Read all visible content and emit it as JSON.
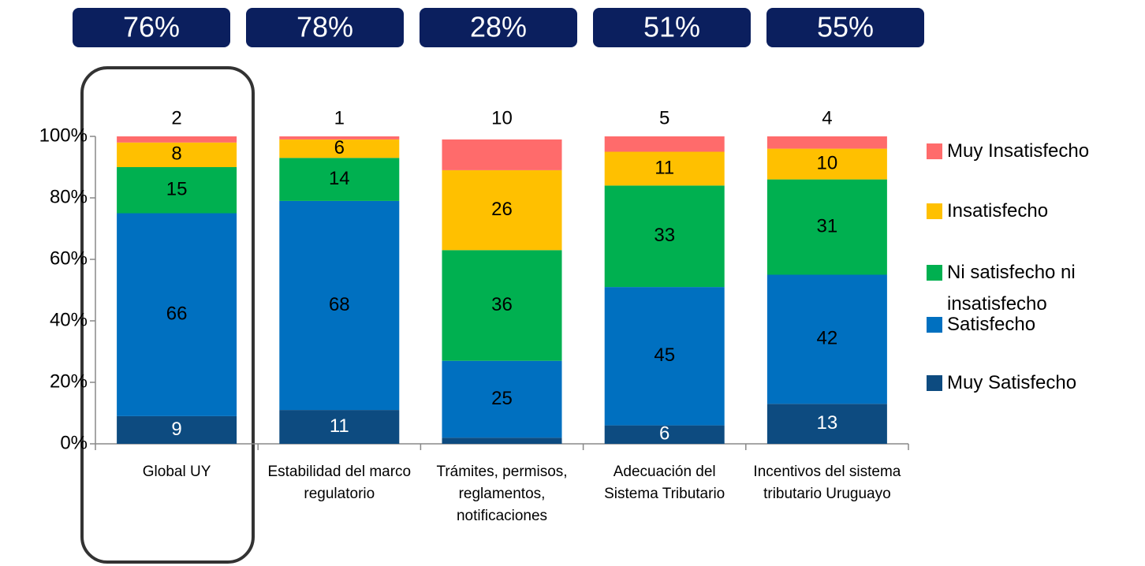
{
  "chart_data": {
    "type": "stacked_bar",
    "categories": [
      "Global UY",
      "Estabilidad del marco regulatorio",
      "Trámites, permisos, reglamentos, notificaciones",
      "Adecuación del Sistema Tributario",
      "Incentivos del sistema tributario Uruguayo"
    ],
    "series": [
      {
        "name": "Muy Satisfecho",
        "color": "#0d4b80",
        "values": [
          9,
          11,
          2,
          6,
          13
        ]
      },
      {
        "name": "Satisfecho",
        "color": "#0070c0",
        "values": [
          66,
          68,
          25,
          45,
          42
        ]
      },
      {
        "name": "Ni satisfecho ni insatisfecho",
        "color": "#00b050",
        "values": [
          15,
          14,
          36,
          33,
          31
        ]
      },
      {
        "name": "Insatisfecho",
        "color": "#ffc000",
        "values": [
          8,
          6,
          26,
          11,
          10
        ]
      },
      {
        "name": "Muy Insatisfecho",
        "color": "#ff6b6b",
        "values": [
          2,
          1,
          10,
          5,
          4
        ]
      }
    ],
    "ylim": [
      0,
      100
    ],
    "yticks": [
      {
        "value": 0,
        "label": "0%"
      },
      {
        "value": 20,
        "label": "20%"
      },
      {
        "value": 40,
        "label": "40%"
      },
      {
        "value": 60,
        "label": "60%"
      },
      {
        "value": 80,
        "label": "80%"
      },
      {
        "value": 100,
        "label": "100%"
      }
    ],
    "grid": false,
    "legend_position": "right",
    "satisfaction_totals": {
      "values": [
        76,
        78,
        28,
        51,
        55
      ],
      "labels": [
        "76%",
        "78%",
        "28%",
        "51%",
        "55%"
      ]
    }
  }
}
